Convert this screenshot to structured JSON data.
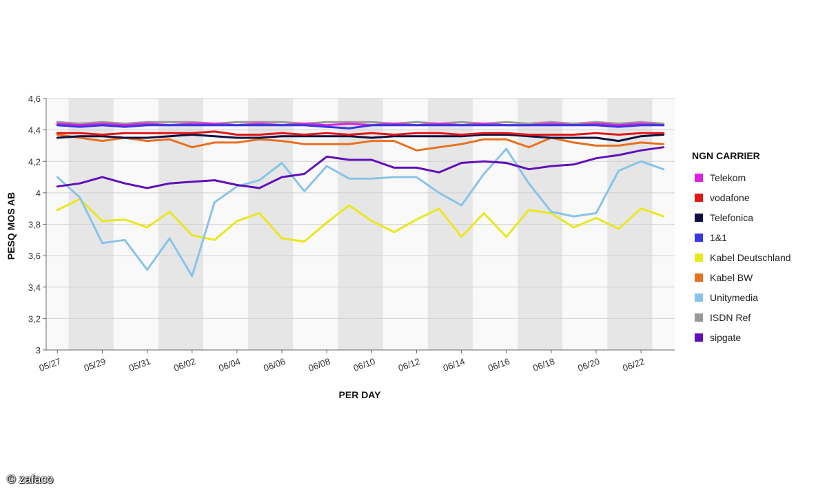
{
  "watermark": "© zafaco",
  "legend": {
    "title": "NGN CARRIER"
  },
  "chart_data": {
    "type": "line",
    "title": "",
    "xlabel": "PER DAY",
    "ylabel": "PESQ MOS AB",
    "ylim": [
      3,
      4.6
    ],
    "yticks": [
      "3",
      "3,2",
      "3,4",
      "3,6",
      "3,8",
      "4",
      "4,2",
      "4,4",
      "4,6"
    ],
    "ytick_values": [
      3,
      3.2,
      3.4,
      3.6,
      3.8,
      4.0,
      4.2,
      4.4,
      4.6
    ],
    "grid": true,
    "categories": [
      "05/27",
      "05/28",
      "05/29",
      "05/30",
      "05/31",
      "06/01",
      "06/02",
      "06/03",
      "06/04",
      "06/05",
      "06/06",
      "06/07",
      "06/08",
      "06/09",
      "06/10",
      "06/11",
      "06/12",
      "06/13",
      "06/14",
      "06/15",
      "06/16",
      "06/17",
      "06/18",
      "06/19",
      "06/20",
      "06/21",
      "06/22",
      "06/23"
    ],
    "xtick_labels": [
      "05/27",
      "05/29",
      "05/31",
      "06/02",
      "06/04",
      "06/06",
      "06/08",
      "06/10",
      "06/12",
      "06/14",
      "06/16",
      "06/18",
      "06/20",
      "06/22"
    ],
    "series": [
      {
        "name": "Telekom",
        "color": "#e020e0",
        "values": [
          4.44,
          4.43,
          4.44,
          4.43,
          4.44,
          4.43,
          4.44,
          4.44,
          4.43,
          4.44,
          4.43,
          4.44,
          4.43,
          4.44,
          4.43,
          4.44,
          4.43,
          4.44,
          4.43,
          4.44,
          4.43,
          4.43,
          4.44,
          4.43,
          4.44,
          4.43,
          4.44,
          4.43
        ]
      },
      {
        "name": "vodafone",
        "color": "#e01818",
        "values": [
          4.38,
          4.38,
          4.37,
          4.38,
          4.38,
          4.38,
          4.38,
          4.39,
          4.37,
          4.37,
          4.38,
          4.37,
          4.38,
          4.37,
          4.38,
          4.37,
          4.38,
          4.38,
          4.37,
          4.38,
          4.38,
          4.37,
          4.37,
          4.37,
          4.38,
          4.37,
          4.38,
          4.38
        ]
      },
      {
        "name": "Telefonica",
        "color": "#101040",
        "values": [
          4.35,
          4.36,
          4.36,
          4.35,
          4.35,
          4.36,
          4.37,
          4.36,
          4.35,
          4.35,
          4.36,
          4.36,
          4.36,
          4.36,
          4.35,
          4.36,
          4.36,
          4.36,
          4.36,
          4.37,
          4.37,
          4.36,
          4.35,
          4.35,
          4.35,
          4.33,
          4.36,
          4.37
        ]
      },
      {
        "name": "1&1",
        "color": "#3838e0",
        "values": [
          4.43,
          4.42,
          4.43,
          4.42,
          4.43,
          4.43,
          4.43,
          4.43,
          4.43,
          4.43,
          4.43,
          4.43,
          4.42,
          4.41,
          4.43,
          4.43,
          4.43,
          4.43,
          4.43,
          4.43,
          4.43,
          4.43,
          4.43,
          4.43,
          4.43,
          4.42,
          4.43,
          4.43
        ]
      },
      {
        "name": "Kabel Deutschland",
        "color": "#e8e820",
        "values": [
          3.89,
          3.96,
          3.82,
          3.83,
          3.78,
          3.88,
          3.73,
          3.7,
          3.82,
          3.87,
          3.71,
          3.69,
          3.81,
          3.92,
          3.82,
          3.75,
          3.83,
          3.9,
          3.72,
          3.87,
          3.72,
          3.89,
          3.87,
          3.78,
          3.84,
          3.77,
          3.9,
          3.85
        ]
      },
      {
        "name": "Kabel BW",
        "color": "#e87020",
        "values": [
          4.37,
          4.35,
          4.33,
          4.35,
          4.33,
          4.34,
          4.29,
          4.32,
          4.32,
          4.34,
          4.33,
          4.31,
          4.31,
          4.31,
          4.33,
          4.33,
          4.27,
          4.29,
          4.31,
          4.34,
          4.34,
          4.29,
          4.35,
          4.32,
          4.3,
          4.3,
          4.32,
          4.31
        ]
      },
      {
        "name": "Unitymedia",
        "color": "#88c4e8",
        "values": [
          4.1,
          3.97,
          3.68,
          3.7,
          3.51,
          3.71,
          3.47,
          3.94,
          4.04,
          4.08,
          4.19,
          4.01,
          4.17,
          4.09,
          4.09,
          4.1,
          4.1,
          4.0,
          3.92,
          4.12,
          4.28,
          4.06,
          3.88,
          3.85,
          3.87,
          4.14,
          4.2,
          4.15
        ]
      },
      {
        "name": "ISDN Ref",
        "color": "#999999",
        "values": [
          4.45,
          4.44,
          4.45,
          4.44,
          4.45,
          4.45,
          4.45,
          4.44,
          4.45,
          4.45,
          4.45,
          4.44,
          4.45,
          4.45,
          4.45,
          4.44,
          4.45,
          4.44,
          4.45,
          4.44,
          4.45,
          4.44,
          4.45,
          4.44,
          4.45,
          4.44,
          4.45,
          4.44
        ]
      },
      {
        "name": "sipgate",
        "color": "#6010b8",
        "values": [
          4.04,
          4.06,
          4.1,
          4.06,
          4.03,
          4.06,
          4.07,
          4.08,
          4.05,
          4.03,
          4.1,
          4.12,
          4.23,
          4.21,
          4.21,
          4.16,
          4.16,
          4.13,
          4.19,
          4.2,
          4.19,
          4.15,
          4.17,
          4.18,
          4.22,
          4.24,
          4.27,
          4.29
        ]
      }
    ]
  }
}
